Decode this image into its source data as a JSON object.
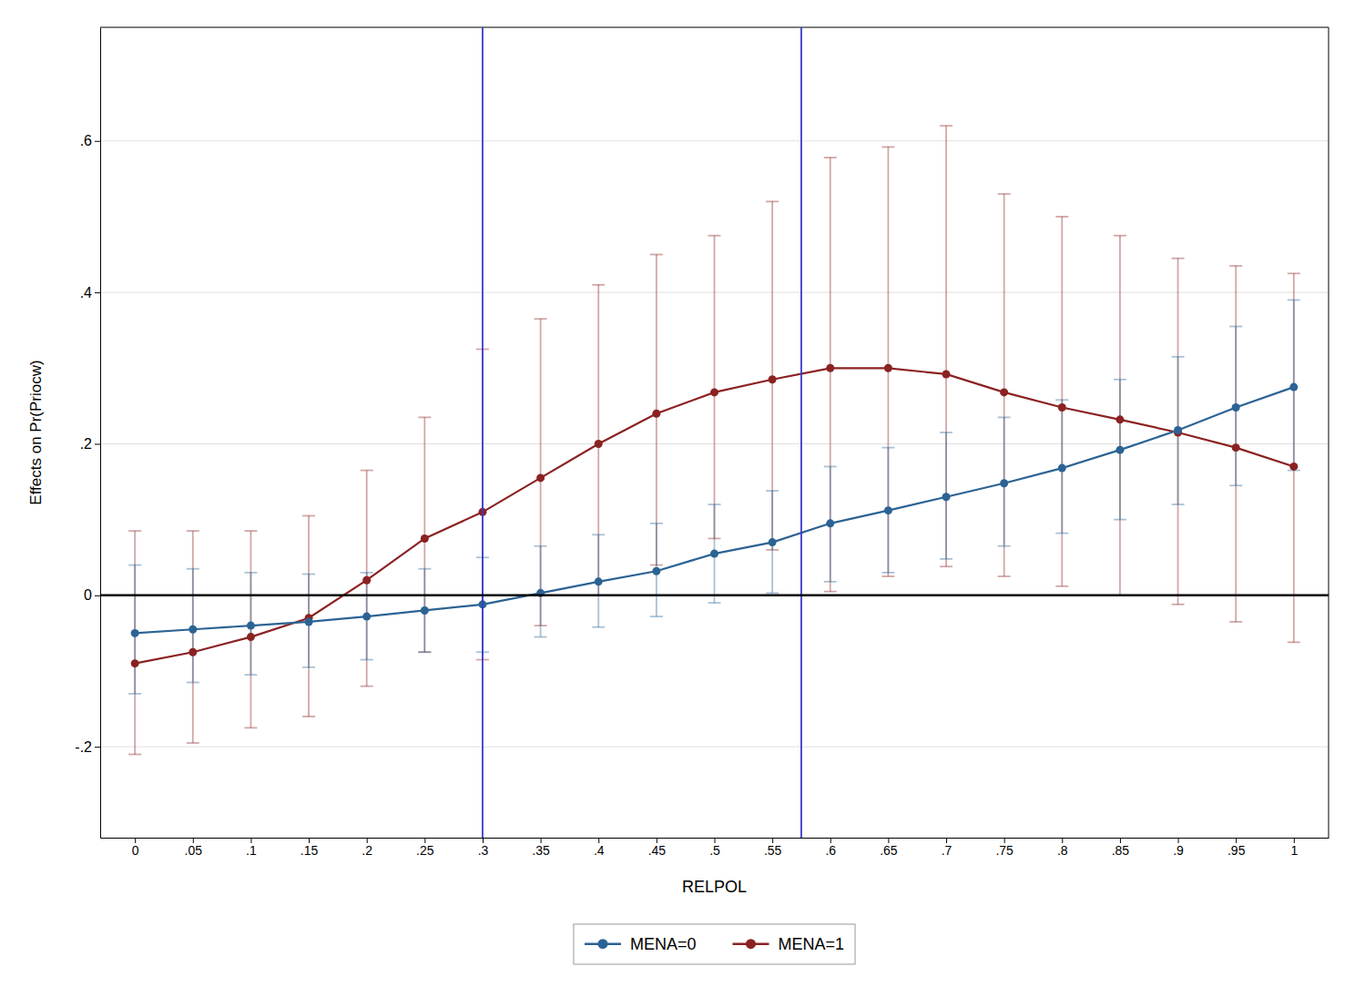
{
  "chart_data": {
    "type": "line",
    "xlabel": "RELPOL",
    "ylabel": "Effects on Pr(Priocw)",
    "x": [
      0,
      0.05,
      0.1,
      0.15,
      0.2,
      0.25,
      0.3,
      0.35,
      0.4,
      0.45,
      0.5,
      0.55,
      0.6,
      0.65,
      0.7,
      0.75,
      0.8,
      0.85,
      0.9,
      0.95,
      1.0
    ],
    "series": [
      {
        "name": "MENA=0",
        "color": "#2b6394",
        "marker": "circle",
        "values": [
          -0.05,
          -0.045,
          -0.04,
          -0.035,
          -0.028,
          -0.02,
          -0.012,
          0.003,
          0.018,
          0.032,
          0.055,
          0.07,
          0.095,
          0.112,
          0.13,
          0.148,
          0.168,
          0.192,
          0.218,
          0.248,
          0.275
        ],
        "lo": [
          -0.13,
          -0.115,
          -0.105,
          -0.095,
          -0.085,
          -0.075,
          -0.075,
          -0.055,
          -0.042,
          -0.028,
          -0.01,
          0.003,
          0.018,
          0.03,
          0.048,
          0.065,
          0.082,
          0.1,
          0.12,
          0.145,
          0.165
        ],
        "hi": [
          0.04,
          0.035,
          0.03,
          0.028,
          0.03,
          0.035,
          0.05,
          0.065,
          0.08,
          0.095,
          0.12,
          0.138,
          0.17,
          0.195,
          0.215,
          0.235,
          0.258,
          0.285,
          0.315,
          0.355,
          0.39
        ]
      },
      {
        "name": "MENA=1",
        "color": "#8b2222",
        "marker": "circle",
        "values": [
          -0.09,
          -0.075,
          -0.055,
          -0.03,
          0.02,
          0.075,
          0.11,
          0.155,
          0.2,
          0.24,
          0.268,
          0.285,
          0.3,
          0.3,
          0.292,
          0.268,
          0.248,
          0.232,
          0.215,
          0.195,
          0.17
        ],
        "lo": [
          -0.21,
          -0.195,
          -0.175,
          -0.16,
          -0.12,
          -0.075,
          -0.085,
          -0.04,
          0.0,
          0.04,
          0.075,
          0.06,
          0.005,
          0.025,
          0.038,
          0.025,
          0.012,
          0.0,
          -0.012,
          -0.035,
          -0.062
        ],
        "hi": [
          0.085,
          0.085,
          0.085,
          0.105,
          0.165,
          0.235,
          0.325,
          0.365,
          0.41,
          0.45,
          0.475,
          0.52,
          0.578,
          0.592,
          0.62,
          0.53,
          0.5,
          0.475,
          0.445,
          0.435,
          0.425
        ]
      }
    ],
    "vlines": [
      {
        "x": 0.3,
        "color": "#3a3acc"
      },
      {
        "x": 0.575,
        "color": "#3a3acc"
      }
    ],
    "hlines": [
      {
        "y": 0,
        "color": "black"
      }
    ],
    "xlim": [
      -0.03,
      1.03
    ],
    "xticks": [
      0,
      {
        "value": 0.05,
        "label": ".05"
      },
      {
        "value": 0.1,
        "label": ".1"
      },
      {
        "value": 0.15,
        "label": ".15"
      },
      {
        "value": 0.2,
        "label": ".2"
      },
      {
        "value": 0.25,
        "label": ".25"
      },
      {
        "value": 0.3,
        "label": ".3"
      },
      {
        "value": 0.35,
        "label": ".35"
      },
      {
        "value": 0.4,
        "label": ".4"
      },
      {
        "value": 0.45,
        "label": ".45"
      },
      {
        "value": 0.5,
        "label": ".5"
      },
      {
        "value": 0.55,
        "label": ".55"
      },
      {
        "value": 0.6,
        "label": ".6"
      },
      {
        "value": 0.65,
        "label": ".65"
      },
      {
        "value": 0.7,
        "label": ".7"
      },
      {
        "value": 0.75,
        "label": ".75"
      },
      {
        "value": 0.8,
        "label": ".8"
      },
      {
        "value": 0.85,
        "label": ".85"
      },
      {
        "value": 0.9,
        "label": ".9"
      },
      {
        "value": 0.95,
        "label": ".95"
      },
      1
    ],
    "ylim": [
      -0.32,
      0.75
    ],
    "yticks": [
      {
        "value": -0.2,
        "label": "-.2"
      },
      0,
      {
        "value": 0.2,
        "label": ".2"
      },
      {
        "value": 0.4,
        "label": ".4"
      },
      {
        "value": 0.6,
        "label": ".6"
      }
    ],
    "grid": true,
    "legend": "bottom"
  }
}
